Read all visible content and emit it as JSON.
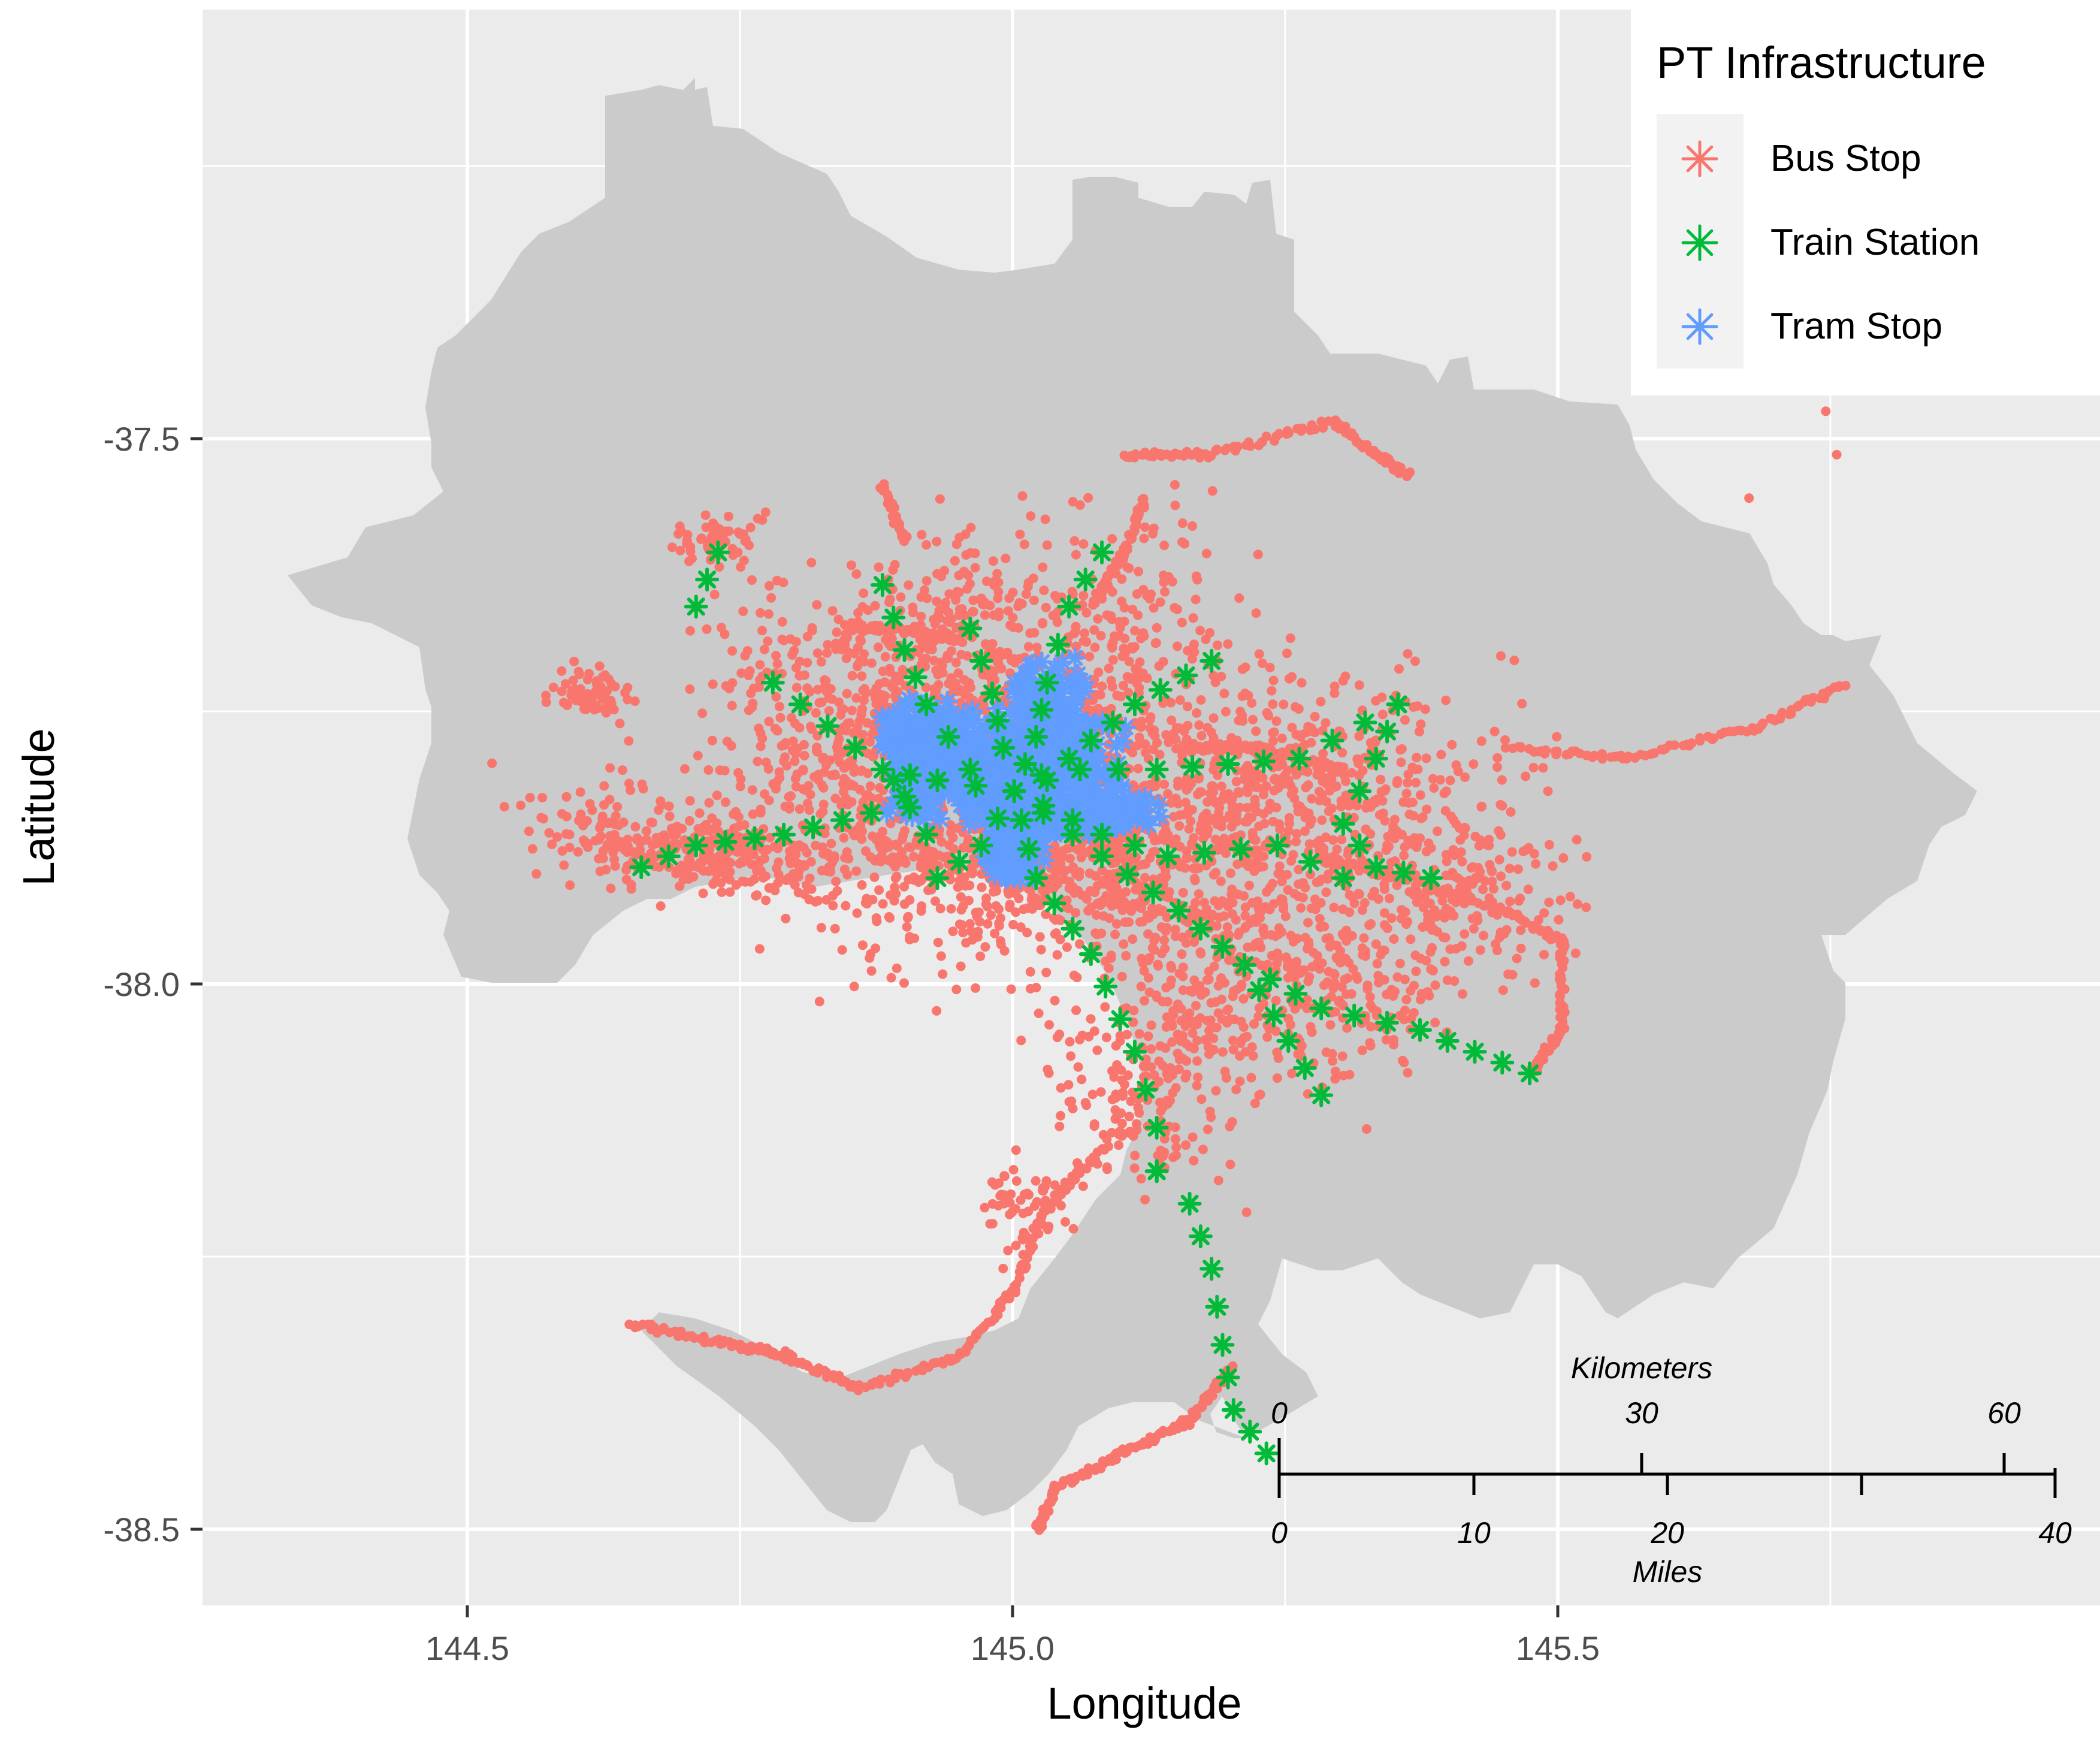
{
  "colors": {
    "panel_background": "#ebebeb",
    "grid": "#ffffff",
    "region_fill": "#cbcbcb",
    "bus_stop": "#f8766d",
    "train_station": "#00ba38",
    "tram_stop": "#619cff"
  },
  "chart_data": {
    "type": "map",
    "x_axis": {
      "label": "Longitude",
      "ticks": [
        144.5,
        145.0,
        145.5
      ],
      "tick_labels": [
        "144.5",
        "145.0",
        "145.5"
      ],
      "range": [
        144.26,
        145.99
      ]
    },
    "y_axis": {
      "label": "Latitude",
      "ticks": [
        -37.5,
        -38.0,
        -38.5
      ],
      "tick_labels": [
        "-37.5",
        "-38.0",
        "-38.5"
      ],
      "range": [
        -38.57,
        -37.1
      ]
    },
    "grid": true,
    "legend": {
      "title": "PT Infrastructure",
      "position": "top-right",
      "entries": [
        {
          "label": "Bus Stop",
          "color_key": "bus_stop"
        },
        {
          "label": "Train Station",
          "color_key": "train_station"
        },
        {
          "label": "Tram Stop",
          "color_key": "tram_stop"
        }
      ]
    },
    "scale_bar": {
      "top_title": "Kilometers",
      "top_labels": [
        "0",
        "30",
        "60"
      ],
      "bottom_labels": [
        "0",
        "10",
        "20",
        "40"
      ],
      "bottom_title": "Miles"
    },
    "train_lines": [
      [
        [
          145.0,
          -37.82
        ],
        [
          144.96,
          -37.8
        ],
        [
          144.92,
          -37.74
        ],
        [
          144.9,
          -37.69
        ],
        [
          144.88,
          -37.63
        ]
      ],
      [
        [
          145.0,
          -37.82
        ],
        [
          144.99,
          -37.78
        ],
        [
          144.98,
          -37.73
        ],
        [
          144.96,
          -37.67
        ]
      ],
      [
        [
          145.0,
          -37.82
        ],
        [
          145.02,
          -37.77
        ],
        [
          145.03,
          -37.72
        ],
        [
          145.05,
          -37.65
        ],
        [
          145.08,
          -37.6
        ]
      ],
      [
        [
          145.0,
          -37.82
        ],
        [
          145.05,
          -37.79
        ],
        [
          145.11,
          -37.74
        ],
        [
          145.18,
          -37.7
        ]
      ],
      [
        [
          145.0,
          -37.82
        ],
        [
          145.06,
          -37.8
        ],
        [
          145.13,
          -37.8
        ],
        [
          145.26,
          -37.79
        ],
        [
          145.35,
          -37.74
        ]
      ],
      [
        [
          145.0,
          -37.82
        ],
        [
          145.08,
          -37.86
        ],
        [
          145.14,
          -37.88
        ],
        [
          145.24,
          -37.87
        ],
        [
          145.3,
          -37.9
        ]
      ],
      [
        [
          145.0,
          -37.82
        ],
        [
          145.08,
          -37.88
        ],
        [
          145.15,
          -37.93
        ],
        [
          145.21,
          -37.98
        ],
        [
          145.28,
          -38.02
        ],
        [
          145.37,
          -38.04
        ],
        [
          145.47,
          -38.08
        ]
      ],
      [
        [
          145.0,
          -37.82
        ],
        [
          145.02,
          -37.9
        ],
        [
          145.07,
          -37.97
        ],
        [
          145.11,
          -38.06
        ],
        [
          145.13,
          -38.13
        ],
        [
          145.13,
          -38.17
        ]
      ],
      [
        [
          145.13,
          -38.17
        ],
        [
          145.16,
          -38.2
        ],
        [
          145.18,
          -38.26
        ],
        [
          145.19,
          -38.33
        ],
        [
          145.2,
          -38.39
        ],
        [
          145.23,
          -38.43
        ]
      ],
      [
        [
          145.0,
          -37.82
        ],
        [
          144.97,
          -37.87
        ],
        [
          144.93,
          -37.9
        ]
      ],
      [
        [
          145.0,
          -37.82
        ],
        [
          144.93,
          -37.81
        ],
        [
          144.88,
          -37.8
        ],
        [
          144.83,
          -37.76
        ],
        [
          144.78,
          -37.72
        ]
      ],
      [
        [
          144.93,
          -37.81
        ],
        [
          144.87,
          -37.84
        ],
        [
          144.79,
          -37.86
        ],
        [
          144.71,
          -37.87
        ],
        [
          144.66,
          -37.89
        ]
      ],
      [
        [
          144.92,
          -37.86
        ],
        [
          144.89,
          -37.81
        ]
      ],
      [
        [
          145.35,
          -37.74
        ],
        [
          145.33,
          -37.79
        ],
        [
          145.3,
          -37.85
        ],
        [
          145.33,
          -37.89
        ],
        [
          145.38,
          -37.9
        ]
      ],
      [
        [
          145.21,
          -37.98
        ],
        [
          145.25,
          -38.05
        ],
        [
          145.28,
          -38.1
        ]
      ],
      [
        [
          144.73,
          -37.6
        ],
        [
          144.71,
          -37.65
        ]
      ]
    ]
  }
}
